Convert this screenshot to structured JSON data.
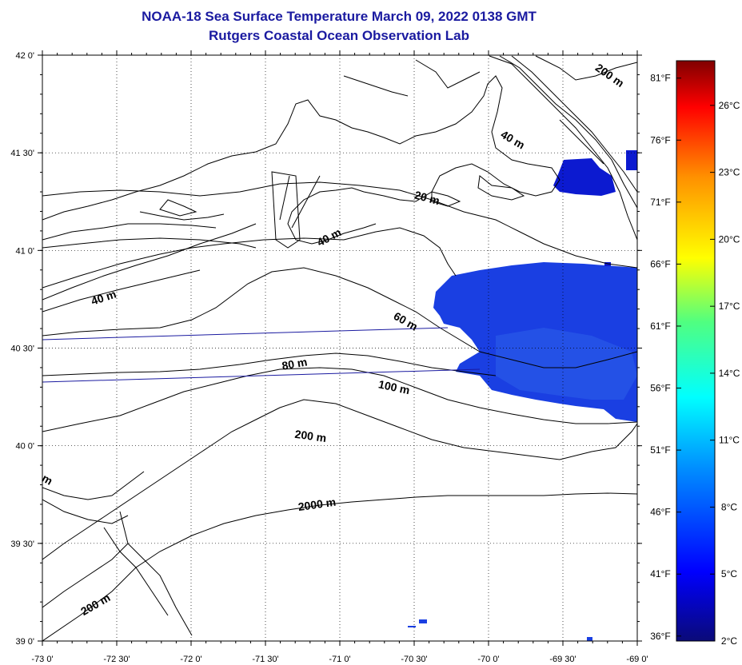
{
  "title": {
    "line1": "NOAA-18 Sea Surface Temperature March 09, 2022 0138 GMT",
    "line2": "Rutgers Coastal Ocean Observation Lab"
  },
  "map": {
    "lon_range": [
      -73.0,
      -69.0
    ],
    "lat_range": [
      39.0,
      42.0
    ],
    "lon_ticks": [
      {
        "value": -73.0,
        "label": "-73 0'"
      },
      {
        "value": -72.5,
        "label": "-72 30'"
      },
      {
        "value": -72.0,
        "label": "-72 0'"
      },
      {
        "value": -71.5,
        "label": "-71 30'"
      },
      {
        "value": -71.0,
        "label": "-71 0'"
      },
      {
        "value": -70.5,
        "label": "-70 30'"
      },
      {
        "value": -70.0,
        "label": "-70 0'"
      },
      {
        "value": -69.5,
        "label": "-69 30'"
      },
      {
        "value": -69.0,
        "label": "-69 0'"
      }
    ],
    "lat_ticks": [
      {
        "value": 39.0,
        "label": "39 0'"
      },
      {
        "value": 39.5,
        "label": "39 30'"
      },
      {
        "value": 40.0,
        "label": "40 0'"
      },
      {
        "value": 40.5,
        "label": "40 30'"
      },
      {
        "value": 41.0,
        "label": "41 0'"
      },
      {
        "value": 41.5,
        "label": "41 30'"
      },
      {
        "value": 42.0,
        "label": "42 0'"
      }
    ],
    "grid": "dotted",
    "sst_patch_color": "#1838e0",
    "sst_deep_color": "#0c1ad0",
    "isobath_labels": [
      {
        "text": "200 m",
        "lon": -69.2,
        "lat": 41.88,
        "rot": 35
      },
      {
        "text": "40 m",
        "lon": -69.85,
        "lat": 41.55,
        "rot": 30
      },
      {
        "text": "20 m",
        "lon": -70.42,
        "lat": 41.25,
        "rot": 15
      },
      {
        "text": "40 m",
        "lon": -71.06,
        "lat": 41.05,
        "rot": -28
      },
      {
        "text": "40 m",
        "lon": -72.58,
        "lat": 40.74,
        "rot": -18
      },
      {
        "text": "60 m",
        "lon": -70.57,
        "lat": 40.62,
        "rot": 30
      },
      {
        "text": "80 m",
        "lon": -71.3,
        "lat": 40.4,
        "rot": -10
      },
      {
        "text": "100 m",
        "lon": -70.64,
        "lat": 40.28,
        "rot": 12
      },
      {
        "text": "200 m",
        "lon": -71.2,
        "lat": 40.03,
        "rot": 8
      },
      {
        "text": "2000 m",
        "lon": -71.15,
        "lat": 39.68,
        "rot": -8
      },
      {
        "text": "200 m",
        "lon": -72.63,
        "lat": 39.17,
        "rot": -30
      },
      {
        "text": "m",
        "lon": -72.98,
        "lat": 39.81,
        "rot": 30
      }
    ]
  },
  "colorbar": {
    "range_c": [
      2,
      28
    ],
    "c_labels": [
      {
        "value": 2,
        "label": "2°C"
      },
      {
        "value": 5,
        "label": "5°C"
      },
      {
        "value": 8,
        "label": "8°C"
      },
      {
        "value": 11,
        "label": "11°C"
      },
      {
        "value": 14,
        "label": "14°C"
      },
      {
        "value": 17,
        "label": "17°C"
      },
      {
        "value": 20,
        "label": "20°C"
      },
      {
        "value": 23,
        "label": "23°C"
      },
      {
        "value": 26,
        "label": "26°C"
      }
    ],
    "f_labels": [
      {
        "value": 36,
        "label": "36°F"
      },
      {
        "value": 41,
        "label": "41°F"
      },
      {
        "value": 46,
        "label": "46°F"
      },
      {
        "value": 51,
        "label": "51°F"
      },
      {
        "value": 56,
        "label": "56°F"
      },
      {
        "value": 61,
        "label": "61°F"
      },
      {
        "value": 66,
        "label": "66°F"
      },
      {
        "value": 71,
        "label": "71°F"
      },
      {
        "value": 76,
        "label": "76°F"
      },
      {
        "value": 81,
        "label": "81°F"
      }
    ],
    "gradient_colors": [
      "#0a0a78",
      "#0000ff",
      "#0090ff",
      "#00ffff",
      "#50ff80",
      "#ffff00",
      "#ff9000",
      "#ff0000",
      "#800000"
    ]
  }
}
